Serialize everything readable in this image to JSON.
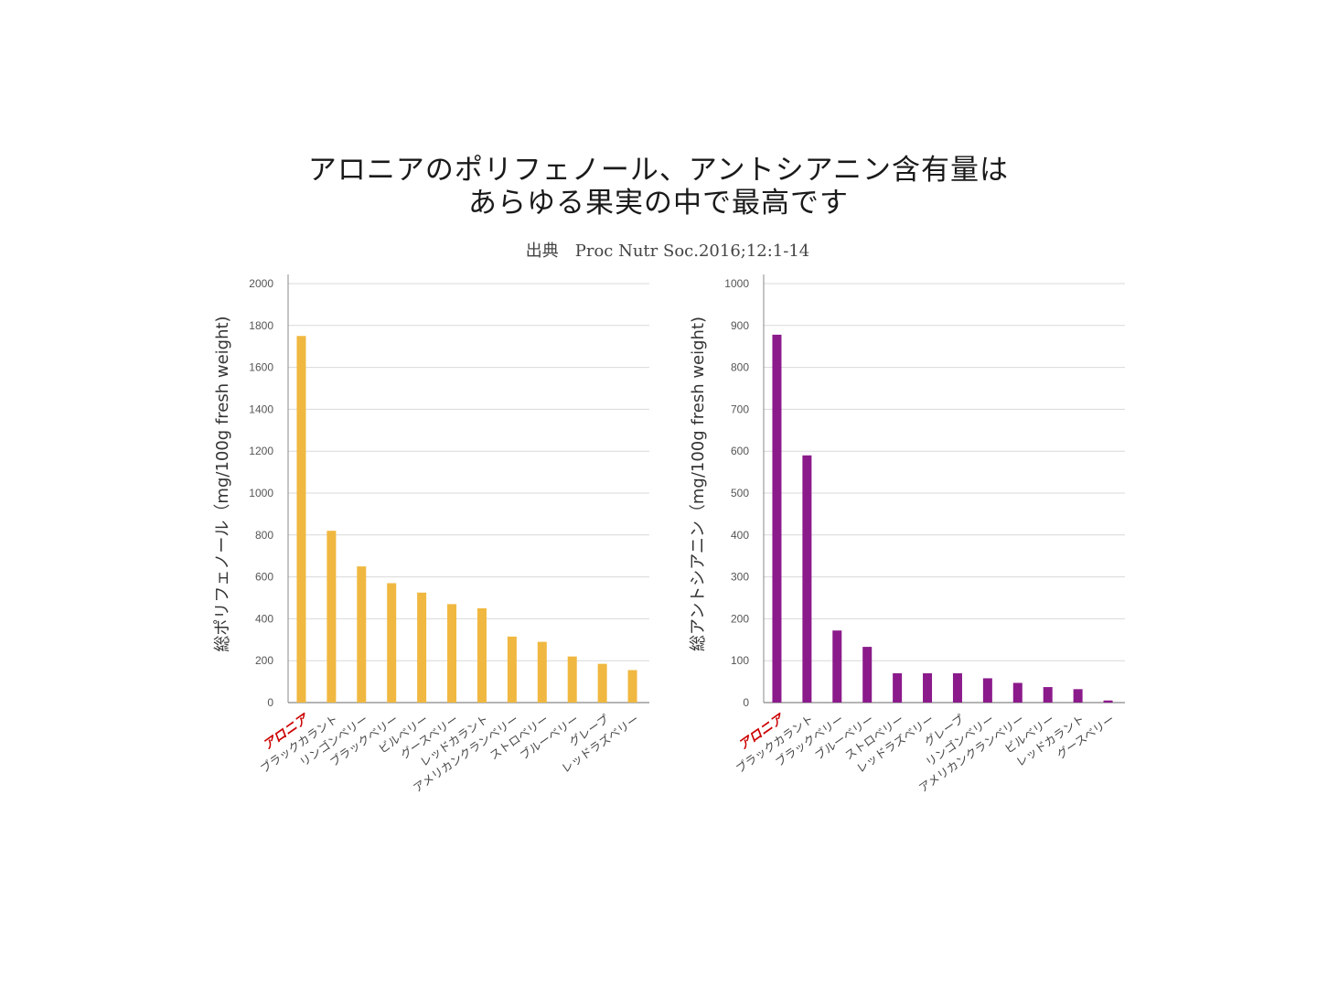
{
  "title": {
    "line1": "アロニアのポリフェノール、アントシアニン含有量は",
    "line2": "あらゆる果実の中で最高です"
  },
  "source": "出典　Proc Nutr Soc.2016;12:1-14",
  "colors": {
    "polyphenol": "#f0b840",
    "anthocyanin": "#8b1a8b",
    "highlight": "#cc0000",
    "grid": "#d9d9d9"
  },
  "chart_data": [
    {
      "type": "bar",
      "title": "",
      "xlabel": "",
      "ylabel": "総ポリフェノール（mg/100g fresh weight)",
      "ylim": [
        0,
        2000
      ],
      "yticks": [
        0,
        200,
        400,
        600,
        800,
        1000,
        1200,
        1400,
        1600,
        1800,
        2000
      ],
      "grid": true,
      "highlight_category": "アロニア",
      "categories": [
        "アロニア",
        "ブラックカラント",
        "リンゴンベリー",
        "ブラックベリー",
        "ビルベリー",
        "グースベリー",
        "レッドカラント",
        "アメリカンクランベリー",
        "ストロベリー",
        "ブルーベリー",
        "グレープ",
        "レッドラズベリー"
      ],
      "values": [
        1750,
        820,
        650,
        570,
        525,
        470,
        450,
        315,
        290,
        220,
        185,
        155
      ]
    },
    {
      "type": "bar",
      "title": "",
      "xlabel": "",
      "ylabel": "総アントシアニン（mg/100g fresh weight)",
      "ylim": [
        0,
        1000
      ],
      "yticks": [
        0,
        100,
        200,
        300,
        400,
        500,
        600,
        700,
        800,
        900,
        1000
      ],
      "grid": true,
      "highlight_category": "アロニア",
      "categories": [
        "アロニア",
        "ブラックカラント",
        "ブラックベリー",
        "ブルーベリー",
        "ストロベリー",
        "レッドラズベリー",
        "グレープ",
        "リンゴンベリー",
        "アメリカンクランベリー",
        "ビルベリー",
        "レッドカラント",
        "グースベリー"
      ],
      "values": [
        878,
        590,
        172,
        133,
        70,
        70,
        70,
        58,
        47,
        37,
        32,
        5
      ]
    }
  ]
}
